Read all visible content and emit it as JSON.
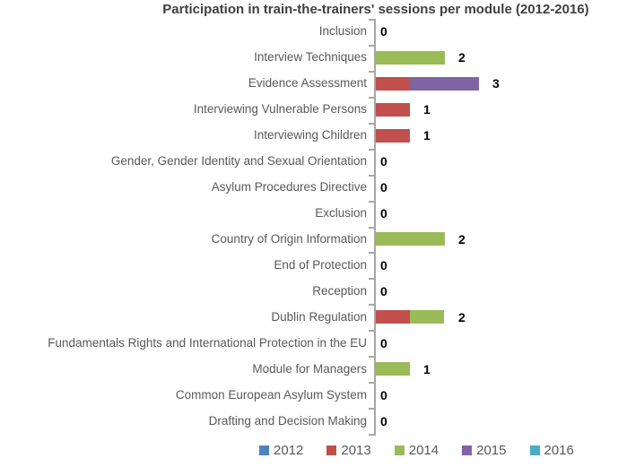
{
  "title": "Participation in train-the-trainers' sessions per module (2012-2016)",
  "colors": {
    "axis": "#a6a6a6",
    "category_text": "#595959",
    "value_text": "#000000",
    "title_text": "#404040",
    "series_2012": "#4f81bd",
    "series_2013": "#c0504d",
    "series_2014": "#9bbb59",
    "series_2015": "#8064a2",
    "series_2016": "#4bacc6"
  },
  "legend": {
    "position": "bottom",
    "entries": [
      "2012",
      "2013",
      "2014",
      "2015",
      "2016"
    ]
  },
  "chart_data": {
    "type": "bar",
    "orientation": "horizontal",
    "stacked": true,
    "title": "Participation in train-the-trainers' sessions per module (2012-2016)",
    "xlabel": "",
    "ylabel": "",
    "xlim": [
      0,
      3
    ],
    "grid": false,
    "data_labels": "total-outside-end",
    "categories": [
      "Inclusion",
      "Interview Techniques",
      "Evidence Assessment",
      "Interviewing Vulnerable Persons",
      "Interviewing Children",
      "Gender, Gender Identity and Sexual Orientation",
      "Asylum Procedures Directive",
      "Exclusion",
      "Country of Origin Information",
      "End of Protection",
      "Reception",
      "Dublin Regulation",
      "Fundamentals Rights and International Protection in the EU",
      "Module for Managers",
      "Common European Asylum System",
      "Drafting and Decision Making"
    ],
    "series": [
      {
        "name": "2012",
        "color": "#4f81bd",
        "values": [
          0,
          0,
          0,
          0,
          0,
          0,
          0,
          0,
          0,
          0,
          0,
          0,
          0,
          0,
          0,
          0
        ]
      },
      {
        "name": "2013",
        "color": "#c0504d",
        "values": [
          0,
          0,
          1,
          1,
          1,
          0,
          0,
          0,
          0,
          0,
          0,
          1,
          0,
          0,
          0,
          0
        ]
      },
      {
        "name": "2014",
        "color": "#9bbb59",
        "values": [
          0,
          2,
          0,
          0,
          0,
          0,
          0,
          0,
          2,
          0,
          0,
          1,
          0,
          1,
          0,
          0
        ]
      },
      {
        "name": "2015",
        "color": "#8064a2",
        "values": [
          0,
          0,
          2,
          0,
          0,
          0,
          0,
          0,
          0,
          0,
          0,
          0,
          0,
          0,
          0,
          0
        ]
      },
      {
        "name": "2016",
        "color": "#4bacc6",
        "values": [
          0,
          0,
          0,
          0,
          0,
          0,
          0,
          0,
          0,
          0,
          0,
          0,
          0,
          0,
          0,
          0
        ]
      }
    ],
    "totals": [
      0,
      2,
      3,
      1,
      1,
      0,
      0,
      0,
      2,
      0,
      0,
      2,
      0,
      1,
      0,
      0
    ]
  }
}
